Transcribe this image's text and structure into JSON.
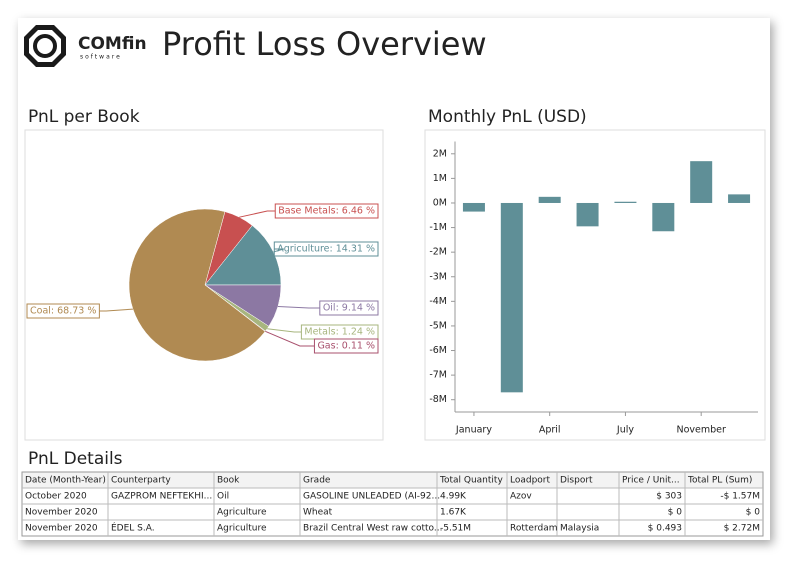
{
  "header": {
    "logo": "COMfin",
    "logo_sub": "software",
    "title": "Profit Loss Overview"
  },
  "chart_data": [
    {
      "type": "pie",
      "title": "PnL per Book",
      "categories": [
        "Base Metals",
        "Agriculture",
        "Oil",
        "Metals",
        "Gas",
        "Coal"
      ],
      "values": [
        6.46,
        14.31,
        9.14,
        1.24,
        0.11,
        68.73
      ],
      "value_labels": [
        "Base Metals: 6.46 %",
        "Agriculture: 14.31 %",
        "Oil: 9.14 %",
        "Metals: 1.24 %",
        "Gas: 0.11 %",
        "Coal: 68.73 %"
      ],
      "colors": [
        "#c85050",
        "#5f8f97",
        "#8c78a3",
        "#a7b57e",
        "#a8506d",
        "#b08a52"
      ]
    },
    {
      "type": "bar",
      "title": "Monthly PnL (USD)",
      "categories": [
        "January",
        null,
        "April",
        null,
        "July",
        null,
        "November",
        null
      ],
      "values": [
        -350000,
        -7700000,
        250000,
        -950000,
        50000,
        -1150000,
        1700000,
        350000
      ],
      "color": "#5f8f97",
      "ylim": [
        -8500000,
        2500000
      ],
      "yticks": [
        {
          "value": 2000000,
          "label": "2M"
        },
        {
          "value": 1000000,
          "label": "1M"
        },
        {
          "value": 0,
          "label": "0M"
        },
        {
          "value": -1000000,
          "label": "-1M"
        },
        {
          "value": -2000000,
          "label": "-2M"
        },
        {
          "value": -3000000,
          "label": "-3M"
        },
        {
          "value": -4000000,
          "label": "-4M"
        },
        {
          "value": -5000000,
          "label": "-5M"
        },
        {
          "value": -6000000,
          "label": "-6M"
        },
        {
          "value": -7000000,
          "label": "-7M"
        },
        {
          "value": -8000000,
          "label": "-8M"
        }
      ],
      "grid": false
    }
  ],
  "table": {
    "title": "PnL Details",
    "columns": [
      "Date (Month-Year)",
      "Counterparty",
      "Book",
      "Grade",
      "Total Quantity",
      "Loadport",
      "Disport",
      "Price / Unit...",
      "Total PL (Sum)"
    ],
    "rows": [
      [
        "October 2020",
        "GAZPROM NEFTEKHI...",
        "Oil",
        "GASOLINE UNLEADED (AI-92...",
        "4.99K",
        "Azov",
        "",
        "$ 303",
        "-$ 1.57M"
      ],
      [
        "November 2020",
        "",
        "Agriculture",
        "Wheat",
        "1.67K",
        "",
        "",
        "$ 0",
        "$ 0"
      ],
      [
        "November 2020",
        "ÉDEL S.A.",
        "Agriculture",
        "Brazil Central West raw cotto...",
        "-5.51M",
        "Rotterdam",
        "Malaysia",
        "$ 0.493",
        "$ 2.72M"
      ]
    ]
  }
}
